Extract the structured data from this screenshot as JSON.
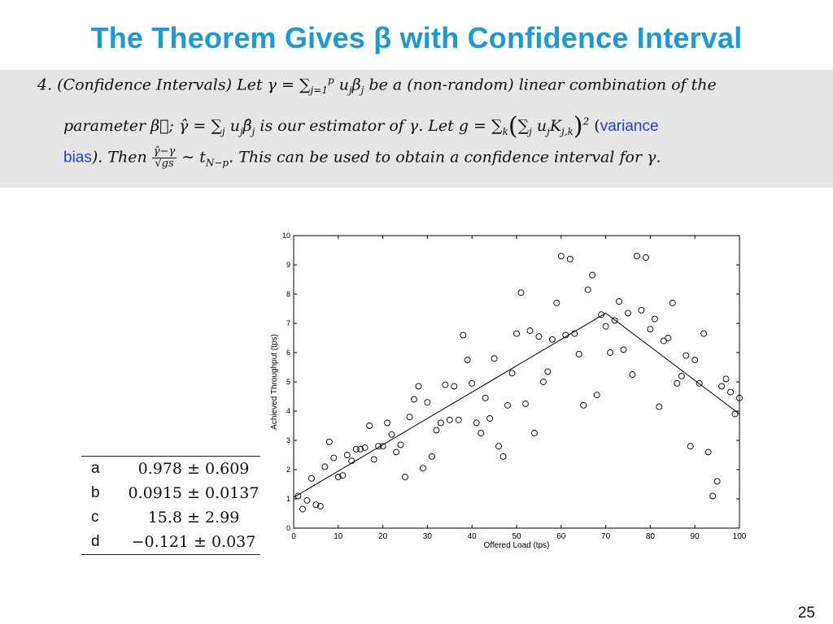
{
  "slide": {
    "title": "The Theorem Gives β with Confidence Interval",
    "page_number": "25"
  },
  "theorem": {
    "line1": {
      "prefix": "4.  (Confidence Intervals) Let γ = ∑",
      "sum_sup": "p",
      "sum_sub": "j=1",
      "suffix": " u",
      "u_sub": "j",
      "beta": "β",
      "beta_sub": "j",
      "rest": " be a (non-random) linear combination of the"
    },
    "line2": {
      "prefix": "parameter β⃗;  γ̂ = ∑",
      "sum_sub": "j",
      "mid": " u",
      "u_sub": "j",
      "beta_hat": "β̂",
      "beta_sub": "j",
      "mid2": " is our estimator of γ.  Let g = ∑",
      "sum_sub_k": "k",
      "paren_open": "(",
      "inner": "∑",
      "inner_sub": "j",
      "inner_u": " u",
      "inner_u_sub": "j",
      "K": "K",
      "K_sub": "j,k",
      "paren_close": ")",
      "power": "2",
      "paren_small_open": " (",
      "blue": "variance"
    },
    "line3": {
      "blue": "bias",
      "after_blue": ").  Then ",
      "frac_num": "γ̂−γ",
      "frac_den": "√gs",
      "tail": " ∼ t",
      "t_sub": "N−p",
      "end": ".  This can be used to obtain a confidence interval for γ."
    }
  },
  "chart_data": {
    "type": "scatter",
    "xlabel": "Offered Load (tps)",
    "ylabel": "Achieved Throughput (tps)",
    "xlim": [
      0,
      100
    ],
    "ylim": [
      0,
      10
    ],
    "xticks": [
      0,
      10,
      20,
      30,
      40,
      50,
      60,
      70,
      80,
      90,
      100
    ],
    "yticks": [
      0,
      1,
      2,
      3,
      4,
      5,
      6,
      7,
      8,
      9,
      10
    ],
    "grid": false,
    "points": [
      [
        1,
        1.1
      ],
      [
        2,
        0.65
      ],
      [
        3,
        0.95
      ],
      [
        4,
        1.7
      ],
      [
        5,
        0.8
      ],
      [
        6,
        0.75
      ],
      [
        7,
        2.1
      ],
      [
        8,
        2.95
      ],
      [
        9,
        2.4
      ],
      [
        10,
        1.75
      ],
      [
        11,
        1.8
      ],
      [
        12,
        2.5
      ],
      [
        13,
        2.3
      ],
      [
        14,
        2.7
      ],
      [
        15,
        2.7
      ],
      [
        16,
        2.75
      ],
      [
        17,
        3.5
      ],
      [
        18,
        2.35
      ],
      [
        19,
        2.8
      ],
      [
        20,
        2.8
      ],
      [
        21,
        3.6
      ],
      [
        22,
        3.2
      ],
      [
        23,
        2.6
      ],
      [
        24,
        2.85
      ],
      [
        25,
        1.75
      ],
      [
        26,
        3.8
      ],
      [
        27,
        4.4
      ],
      [
        28,
        4.85
      ],
      [
        29,
        2.05
      ],
      [
        30,
        4.3
      ],
      [
        31,
        2.45
      ],
      [
        32,
        3.35
      ],
      [
        33,
        3.6
      ],
      [
        34,
        4.9
      ],
      [
        35,
        3.7
      ],
      [
        36,
        4.85
      ],
      [
        37,
        3.7
      ],
      [
        38,
        6.6
      ],
      [
        39,
        5.75
      ],
      [
        40,
        4.95
      ],
      [
        41,
        3.6
      ],
      [
        42,
        3.25
      ],
      [
        43,
        4.45
      ],
      [
        44,
        3.75
      ],
      [
        45,
        5.8
      ],
      [
        46,
        2.8
      ],
      [
        47,
        2.45
      ],
      [
        48,
        4.2
      ],
      [
        49,
        5.3
      ],
      [
        50,
        6.65
      ],
      [
        51,
        8.05
      ],
      [
        52,
        4.25
      ],
      [
        53,
        6.75
      ],
      [
        54,
        3.25
      ],
      [
        55,
        6.55
      ],
      [
        56,
        5.0
      ],
      [
        57,
        5.35
      ],
      [
        58,
        6.45
      ],
      [
        59,
        7.7
      ],
      [
        60,
        9.3
      ],
      [
        61,
        6.6
      ],
      [
        62,
        9.2
      ],
      [
        63,
        6.65
      ],
      [
        64,
        5.95
      ],
      [
        65,
        4.2
      ],
      [
        66,
        8.15
      ],
      [
        67,
        8.65
      ],
      [
        68,
        4.55
      ],
      [
        69,
        7.3
      ],
      [
        70,
        6.9
      ],
      [
        71,
        6.0
      ],
      [
        72,
        7.1
      ],
      [
        73,
        7.75
      ],
      [
        74,
        6.1
      ],
      [
        75,
        7.35
      ],
      [
        76,
        5.25
      ],
      [
        77,
        9.3
      ],
      [
        78,
        7.45
      ],
      [
        79,
        9.25
      ],
      [
        80,
        6.8
      ],
      [
        81,
        7.15
      ],
      [
        82,
        4.15
      ],
      [
        83,
        6.4
      ],
      [
        84,
        6.5
      ],
      [
        85,
        7.7
      ],
      [
        86,
        4.95
      ],
      [
        87,
        5.2
      ],
      [
        88,
        5.9
      ],
      [
        89,
        2.8
      ],
      [
        90,
        5.75
      ],
      [
        91,
        4.95
      ],
      [
        92,
        6.65
      ],
      [
        93,
        2.6
      ],
      [
        94,
        1.1
      ],
      [
        95,
        1.6
      ],
      [
        96,
        4.85
      ],
      [
        97,
        5.1
      ],
      [
        98,
        4.65
      ],
      [
        99,
        3.9
      ],
      [
        100,
        4.45
      ]
    ],
    "fit_line": [
      [
        0,
        1.05
      ],
      [
        70,
        7.35
      ],
      [
        100,
        3.9
      ]
    ],
    "parameters": [
      {
        "name": "a",
        "value": "0.978 ± 0.609"
      },
      {
        "name": "b",
        "value": "0.0915 ± 0.0137"
      },
      {
        "name": "c",
        "value": "15.8 ± 2.99"
      },
      {
        "name": "d",
        "value": "−0.121 ± 0.037"
      }
    ]
  }
}
